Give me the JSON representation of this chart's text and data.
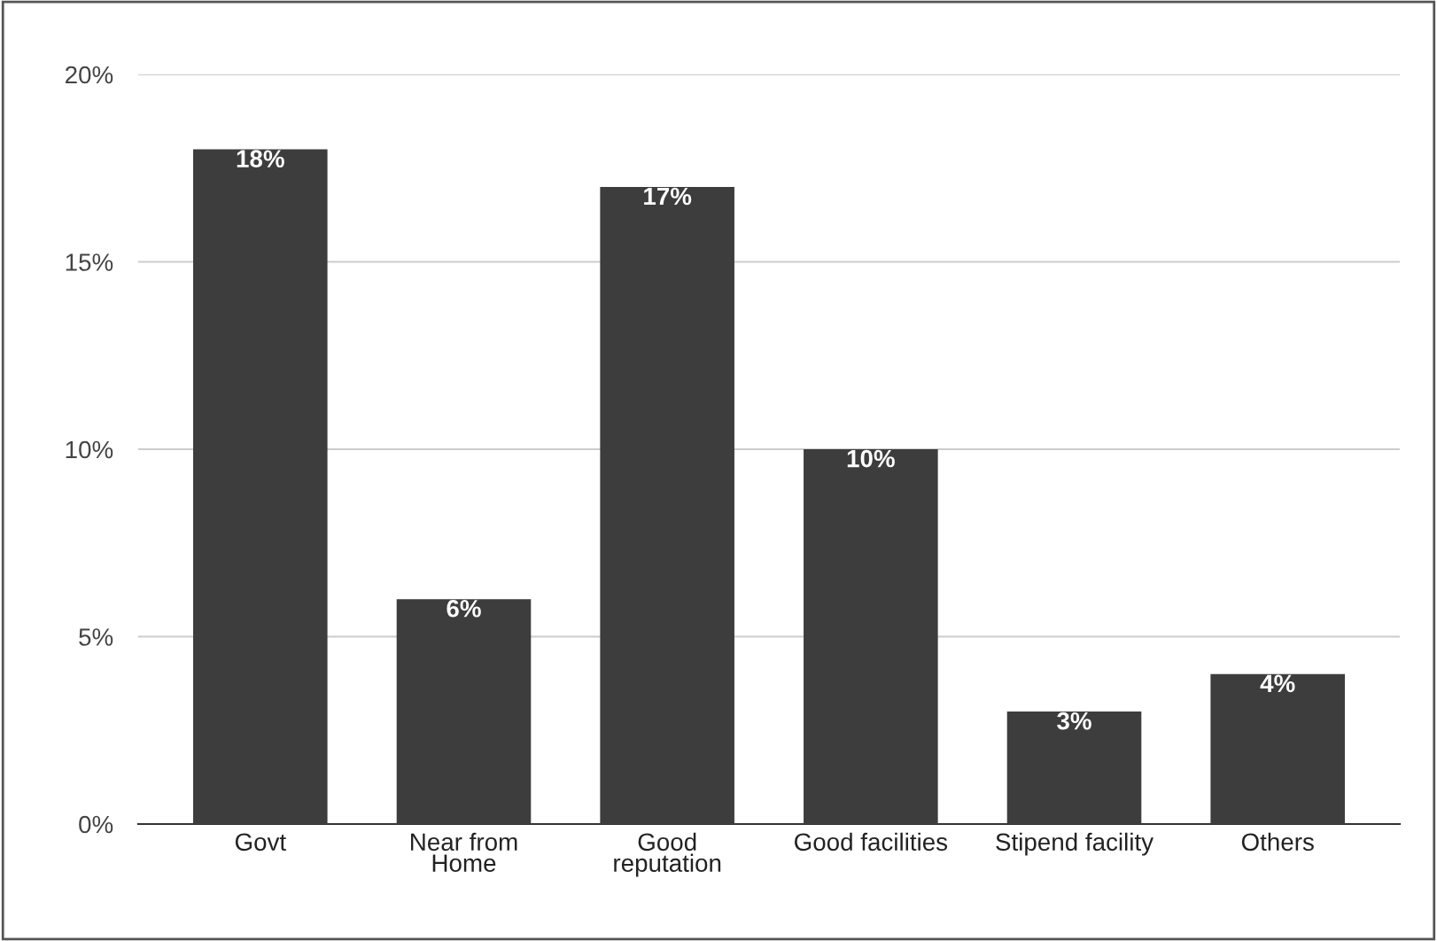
{
  "chart_data": {
    "type": "bar",
    "categories": [
      "Govt",
      "Near from\nHome",
      "Good\nreputation",
      "Good facilities",
      "Stipend facility",
      "Others"
    ],
    "values": [
      18,
      6,
      17,
      10,
      3,
      4
    ],
    "value_labels": [
      "18%",
      "6%",
      "17%",
      "10%",
      "3%",
      "4%"
    ],
    "color": "#3d3d3d",
    "ylim": [
      0,
      20
    ],
    "yticks": [
      {
        "value": 0,
        "label": "0%"
      },
      {
        "value": 5,
        "label": "5%"
      },
      {
        "value": 10,
        "label": "10%"
      },
      {
        "value": 15,
        "label": "15%"
      },
      {
        "value": 20,
        "label": "20%"
      }
    ],
    "grid": "y",
    "legend": false
  }
}
